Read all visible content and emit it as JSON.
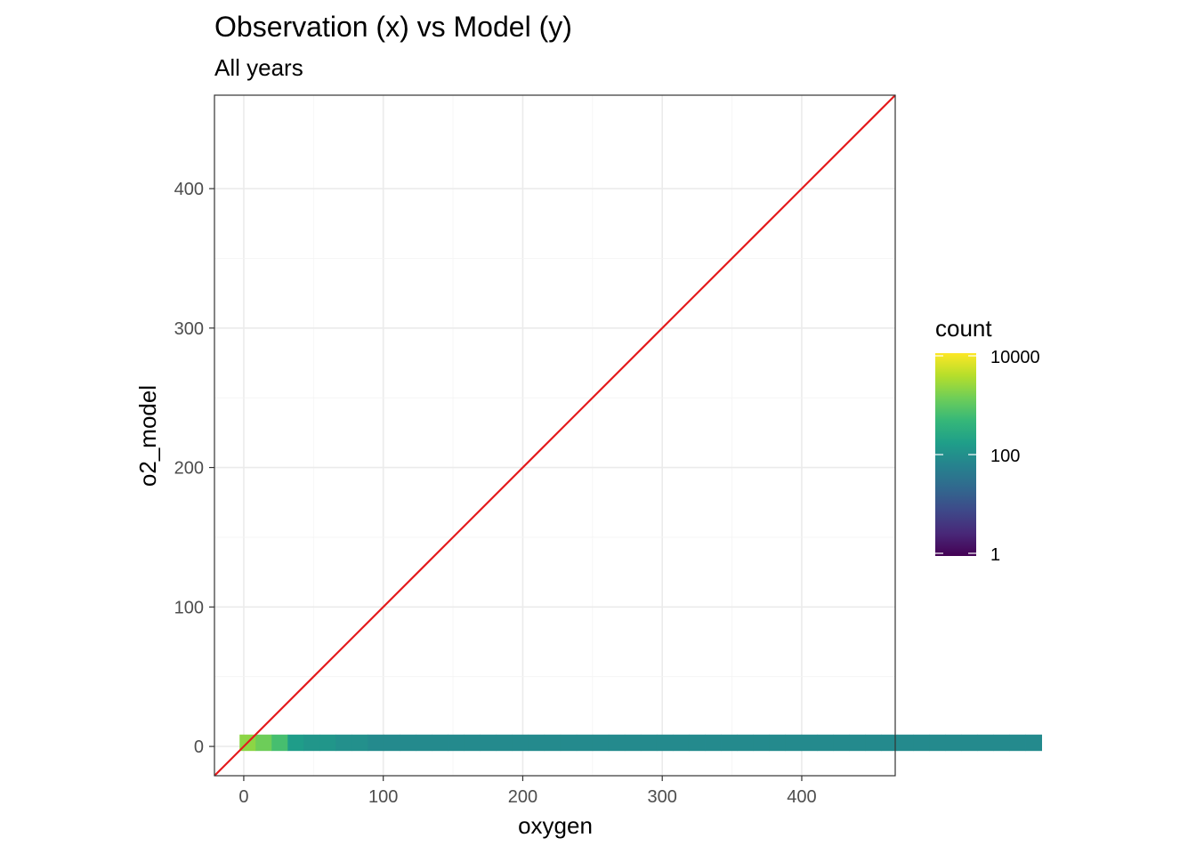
{
  "chart_data": {
    "type": "heatmap",
    "title": "Observation (x) vs Model (y)",
    "subtitle": "All years",
    "xlabel": "oxygen",
    "ylabel": "o2_model",
    "xlim": [
      -21,
      467
    ],
    "ylim": [
      -21,
      467
    ],
    "xticks": [
      0,
      100,
      200,
      300,
      400
    ],
    "yticks": [
      0,
      100,
      200,
      300,
      400
    ],
    "xtick_labels": [
      "0",
      "100",
      "200",
      "300",
      "400"
    ],
    "ytick_labels": [
      "0",
      "100",
      "200",
      "300",
      "400"
    ],
    "bin_width": 11.5,
    "bin_origin": -3,
    "color_scale": "viridis",
    "count_scale": "log10",
    "count_range": [
      1,
      10000
    ],
    "legend": {
      "title": "count",
      "position": "right",
      "breaks": [
        1,
        100,
        10000
      ],
      "labels": [
        "1",
        "100",
        "10000"
      ]
    },
    "reference_line": {
      "slope": 1,
      "intercept": 0,
      "color": "#e41a1c"
    },
    "bins": [
      [
        0,
        0,
        3.3
      ],
      [
        1,
        0,
        3.1
      ],
      [
        2,
        0,
        2.8
      ],
      [
        3,
        0,
        2.2
      ],
      [
        4,
        0,
        2.1
      ],
      [
        5,
        0,
        2.1
      ],
      [
        6,
        0,
        2.0
      ],
      [
        7,
        0,
        2.0
      ],
      [
        8,
        0,
        1.9
      ],
      [
        9,
        0,
        1.9
      ],
      [
        10,
        0,
        1.9
      ],
      [
        11,
        0,
        1.9
      ],
      [
        12,
        0,
        1.9
      ],
      [
        13,
        0,
        1.9
      ],
      [
        14,
        0,
        1.9
      ],
      [
        15,
        0,
        1.9
      ],
      [
        16,
        0,
        1.9
      ],
      [
        17,
        0,
        1.9
      ],
      [
        18,
        0,
        1.9
      ],
      [
        19,
        0,
        1.9
      ],
      [
        20,
        0,
        1.9
      ],
      [
        21,
        0,
        1.9
      ],
      [
        22,
        0,
        1.9
      ],
      [
        23,
        0,
        1.9
      ],
      [
        24,
        0,
        1.9
      ],
      [
        25,
        0,
        1.9
      ],
      [
        26,
        0,
        1.9
      ],
      [
        27,
        0,
        1.9
      ],
      [
        28,
        0,
        1.9
      ],
      [
        29,
        0,
        1.9
      ],
      [
        30,
        0,
        1.9
      ],
      [
        31,
        0,
        1.9
      ],
      [
        32,
        0,
        1.9
      ],
      [
        33,
        0,
        1.9
      ],
      [
        34,
        0,
        1.9
      ],
      [
        35,
        0,
        1.9
      ],
      [
        36,
        0,
        1.9
      ],
      [
        37,
        0,
        1.9
      ],
      [
        38,
        0,
        1.9
      ],
      [
        39,
        0,
        1.9
      ],
      [
        40,
        0,
        1.9
      ],
      [
        41,
        0,
        1.9
      ],
      [
        42,
        0,
        1.9
      ],
      [
        43,
        0,
        1.9
      ],
      [
        44,
        0,
        1.9
      ],
      [
        45,
        0,
        1.9
      ],
      [
        46,
        0,
        1.9
      ],
      [
        47,
        0,
        1.9
      ],
      [
        48,
        0,
        1.9
      ],
      [
        49,
        0,
        1.9
      ]
    ]
  }
}
